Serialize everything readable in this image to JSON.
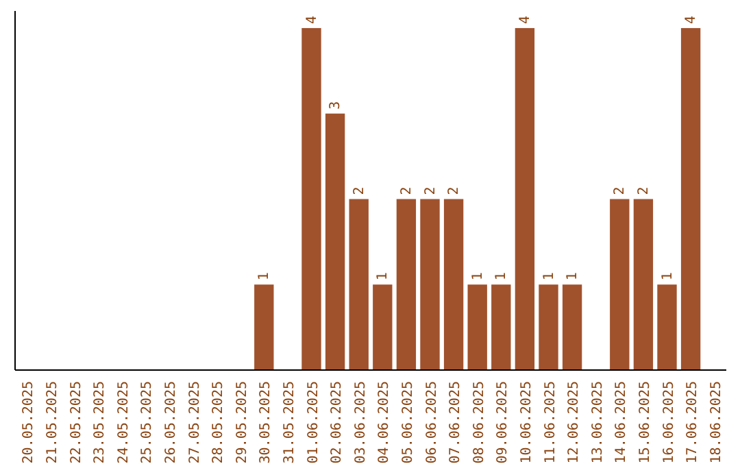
{
  "chart_data": {
    "type": "bar",
    "categories": [
      "20.05.2025",
      "21.05.2025",
      "22.05.2025",
      "23.05.2025",
      "24.05.2025",
      "25.05.2025",
      "26.05.2025",
      "27.05.2025",
      "28.05.2025",
      "29.05.2025",
      "30.05.2025",
      "31.05.2025",
      "01.06.2025",
      "02.06.2025",
      "03.06.2025",
      "04.06.2025",
      "05.06.2025",
      "06.06.2025",
      "07.06.2025",
      "08.06.2025",
      "09.06.2025",
      "10.06.2025",
      "11.06.2025",
      "12.06.2025",
      "13.06.2025",
      "14.06.2025",
      "15.06.2025",
      "16.06.2025",
      "17.06.2025",
      "18.06.2025"
    ],
    "values": [
      0,
      0,
      0,
      0,
      0,
      0,
      0,
      0,
      0,
      0,
      1,
      0,
      4,
      3,
      2,
      1,
      2,
      2,
      2,
      1,
      1,
      4,
      1,
      1,
      0,
      2,
      2,
      1,
      4,
      0
    ],
    "value_labels": [
      null,
      null,
      null,
      null,
      null,
      null,
      null,
      null,
      null,
      null,
      "1",
      null,
      "4",
      "3",
      "2",
      "1",
      "2",
      "2",
      "2",
      "1",
      "1",
      "4",
      "1",
      "1",
      null,
      "2",
      "2",
      "1",
      "4",
      null
    ],
    "color": "#a0522d",
    "ylim": [
      0,
      4.2
    ]
  }
}
